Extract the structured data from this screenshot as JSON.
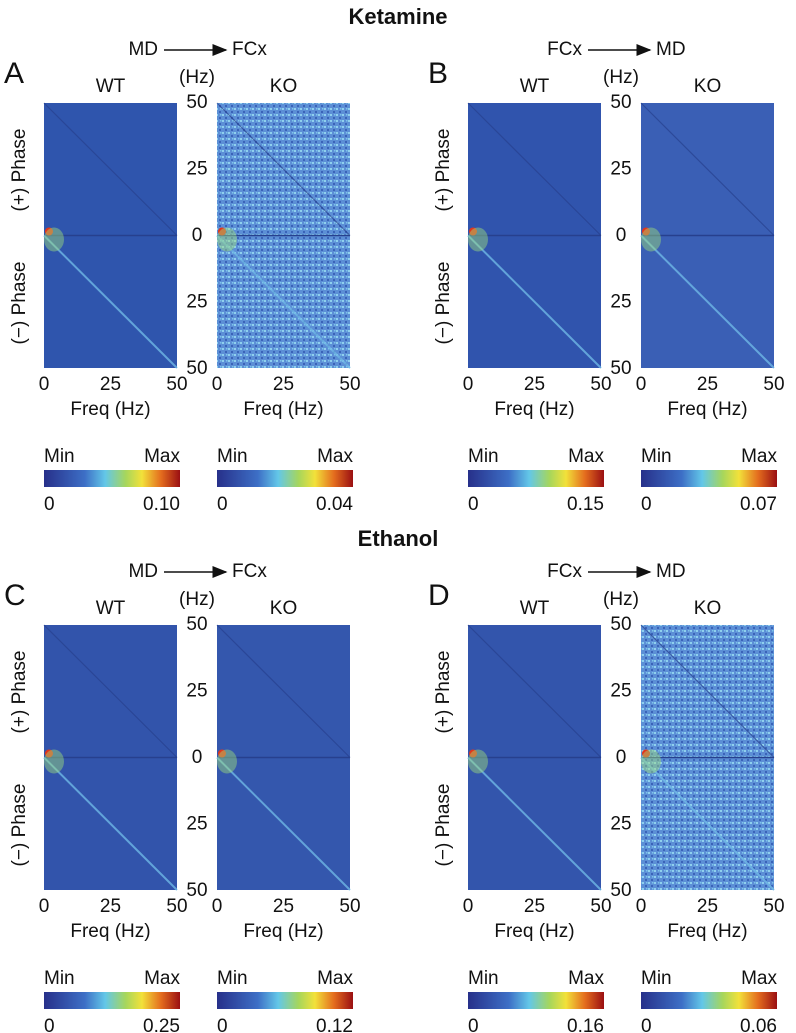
{
  "sections": [
    {
      "title": "Ketamine",
      "panels": [
        {
          "letter": "A",
          "from": "MD",
          "to": "FCx",
          "unit": "(Hz)",
          "phase_pos": "(+) Phase",
          "phase_neg": "(−) Phase",
          "yticks": [
            "50",
            "25",
            "0",
            "25",
            "50"
          ],
          "maps": [
            {
              "label": "WT",
              "xlabel": "Freq (Hz)",
              "xticks": [
                "0",
                "25",
                "50"
              ],
              "cmin": "Min",
              "cmax": "Max",
              "cticks": [
                "0",
                "0.10"
              ]
            },
            {
              "label": "KO",
              "xlabel": "Freq (Hz)",
              "xticks": [
                "0",
                "25",
                "50"
              ],
              "cmin": "Min",
              "cmax": "Max",
              "cticks": [
                "0",
                "0.04"
              ]
            }
          ]
        },
        {
          "letter": "B",
          "from": "FCx",
          "to": "MD",
          "unit": "(Hz)",
          "phase_pos": "(+) Phase",
          "phase_neg": "(−) Phase",
          "yticks": [
            "50",
            "25",
            "0",
            "25",
            "50"
          ],
          "maps": [
            {
              "label": "WT",
              "xlabel": "Freq (Hz)",
              "xticks": [
                "0",
                "25",
                "50"
              ],
              "cmin": "Min",
              "cmax": "Max",
              "cticks": [
                "0",
                "0.15"
              ]
            },
            {
              "label": "KO",
              "xlabel": "Freq (Hz)",
              "xticks": [
                "0",
                "25",
                "50"
              ],
              "cmin": "Min",
              "cmax": "Max",
              "cticks": [
                "0",
                "0.07"
              ]
            }
          ]
        }
      ]
    },
    {
      "title": "Ethanol",
      "panels": [
        {
          "letter": "C",
          "from": "MD",
          "to": "FCx",
          "unit": "(Hz)",
          "phase_pos": "(+) Phase",
          "phase_neg": "(−) Phase",
          "yticks": [
            "50",
            "25",
            "0",
            "25",
            "50"
          ],
          "maps": [
            {
              "label": "WT",
              "xlabel": "Freq (Hz)",
              "xticks": [
                "0",
                "25",
                "50"
              ],
              "cmin": "Min",
              "cmax": "Max",
              "cticks": [
                "0",
                "0.25"
              ]
            },
            {
              "label": "KO",
              "xlabel": "Freq (Hz)",
              "xticks": [
                "0",
                "25",
                "50"
              ],
              "cmin": "Min",
              "cmax": "Max",
              "cticks": [
                "0",
                "0.12"
              ]
            }
          ]
        },
        {
          "letter": "D",
          "from": "FCx",
          "to": "MD",
          "unit": "(Hz)",
          "phase_pos": "(+) Phase",
          "phase_neg": "(−) Phase",
          "yticks": [
            "50",
            "25",
            "0",
            "25",
            "50"
          ],
          "maps": [
            {
              "label": "WT",
              "xlabel": "Freq (Hz)",
              "xticks": [
                "0",
                "25",
                "50"
              ],
              "cmin": "Min",
              "cmax": "Max",
              "cticks": [
                "0",
                "0.16"
              ]
            },
            {
              "label": "KO",
              "xlabel": "Freq (Hz)",
              "xticks": [
                "0",
                "25",
                "50"
              ],
              "cmin": "Min",
              "cmax": "Max",
              "cticks": [
                "0",
                "0.06"
              ]
            }
          ]
        }
      ]
    }
  ]
}
